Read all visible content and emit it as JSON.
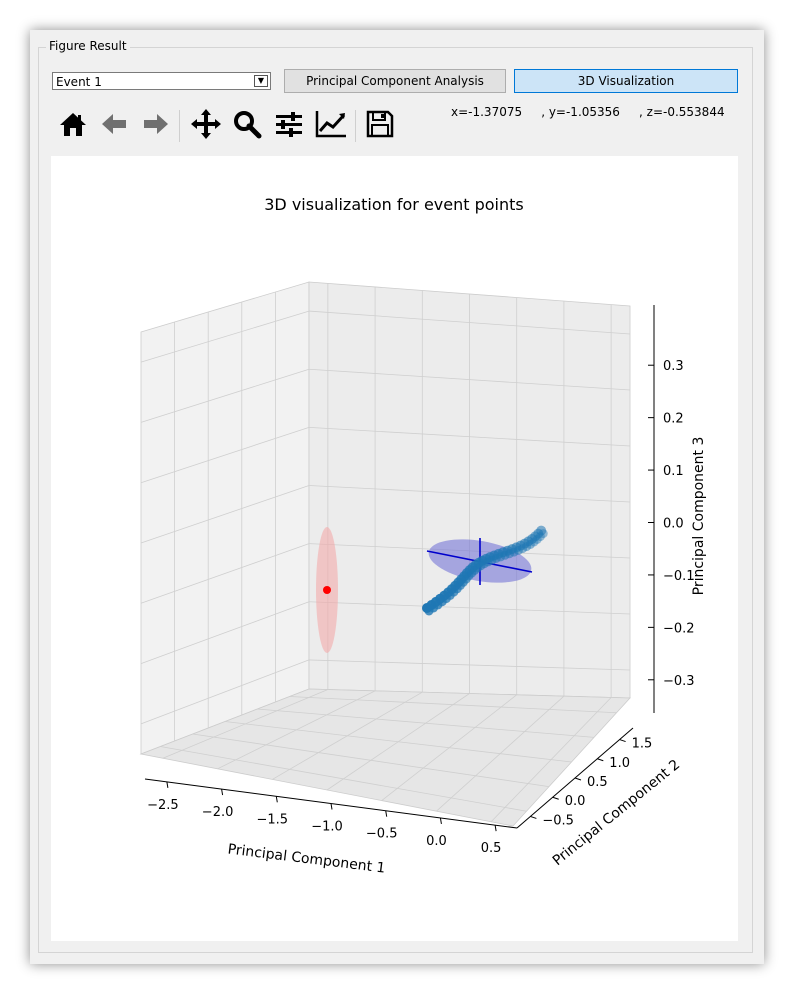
{
  "group": {
    "title": "Figure Result"
  },
  "event_select": {
    "value": "Event 1"
  },
  "buttons": {
    "pca": "Principal Component Analysis",
    "viz3d": "3D Visualization"
  },
  "toolbar": {
    "icons": [
      "home-icon",
      "back-arrow-icon",
      "forward-arrow-icon",
      "pan-move-icon",
      "zoom-magnifier-icon",
      "configure-subplots-icon",
      "edit-axis-icon",
      "save-floppy-icon"
    ]
  },
  "coords": {
    "x": "x=-1.37075",
    "y": ", y=-1.05356",
    "z": ", z=-0.553844"
  },
  "colors": {
    "accent": "#0078d7",
    "points": "#1f77b4",
    "ellipse_blue": "#6c6cd6",
    "ellipse_red": "#f4a6a6",
    "centroid": "#ff0000"
  },
  "chart_data": {
    "type": "scatter",
    "title": "3D visualization for event points",
    "xlabel": "Principal Component 1",
    "ylabel": "Principal Component 2",
    "zlabel": "Principal Component 3",
    "x_ticks": [
      "−2.5",
      "−2.0",
      "−1.5",
      "−1.0",
      "−0.5",
      "0.0",
      "0.5"
    ],
    "y_ticks": [
      "−0.5",
      "0.0",
      "0.5",
      "1.0",
      "1.5"
    ],
    "z_ticks": [
      "0.3",
      "0.2",
      "0.1",
      "0.0",
      "−0.1",
      "−0.2",
      "−0.3"
    ],
    "xlim": [
      -2.7,
      0.7
    ],
    "ylim": [
      -0.8,
      1.8
    ],
    "zlim": [
      -0.35,
      0.35
    ],
    "grid": true,
    "series": [
      {
        "points": [
          [
            -0.05,
            0.05,
            -0.14
          ],
          [
            -0.04,
            0.06,
            -0.125
          ],
          [
            -0.03,
            0.07,
            -0.11
          ],
          [
            -0.02,
            0.08,
            -0.1
          ],
          [
            -0.01,
            0.09,
            -0.095
          ],
          [
            0.0,
            0.1,
            -0.09
          ],
          [
            0.02,
            0.11,
            -0.085
          ],
          [
            0.04,
            0.12,
            -0.08
          ],
          [
            0.06,
            0.13,
            -0.075
          ],
          [
            0.08,
            0.14,
            -0.075
          ],
          [
            0.1,
            0.15,
            -0.07
          ],
          [
            0.12,
            0.16,
            -0.065
          ],
          [
            0.14,
            0.17,
            -0.06
          ],
          [
            0.16,
            0.18,
            -0.058
          ],
          [
            0.18,
            0.19,
            -0.055
          ],
          [
            0.2,
            0.2,
            -0.052
          ],
          [
            0.22,
            0.21,
            -0.05
          ],
          [
            0.24,
            0.22,
            -0.048
          ],
          [
            0.26,
            0.23,
            -0.045
          ],
          [
            0.28,
            0.24,
            -0.04
          ],
          [
            0.3,
            0.25,
            -0.035
          ],
          [
            0.32,
            0.26,
            -0.03
          ],
          [
            0.34,
            0.27,
            -0.025
          ],
          [
            0.36,
            0.28,
            -0.02
          ],
          [
            0.38,
            0.29,
            -0.015
          ],
          [
            0.4,
            0.3,
            -0.01
          ],
          [
            0.42,
            0.31,
            -0.005
          ],
          [
            0.44,
            0.32,
            0.0
          ],
          [
            0.46,
            0.33,
            0.005
          ],
          [
            0.48,
            0.34,
            0.01
          ],
          [
            0.5,
            0.35,
            0.015
          ],
          [
            0.52,
            0.36,
            0.02
          ]
        ]
      }
    ],
    "centroid_red": [
      -2.25,
      0.0,
      -0.1
    ],
    "centroid_blue": [
      0.2,
      0.2,
      -0.07
    ]
  }
}
